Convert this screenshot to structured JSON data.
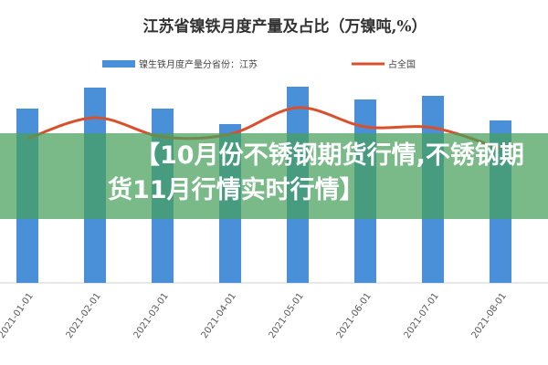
{
  "chart_data": {
    "type": "bar",
    "title": "江苏省镍铁月度产量及占比（万镍吨,%）",
    "categories": [
      "2021-01-01",
      "2021-02-01",
      "2021-03-01",
      "2021-04-01",
      "2021-05-01",
      "2021-06-01",
      "2021-07-01",
      "2021-08-01"
    ],
    "series": [
      {
        "name": "镍生铁月度产量分省份：江苏",
        "color": "#4a90d9",
        "type": "bar",
        "values": [
          1.91,
          2.14,
          1.91,
          1.74,
          2.15,
          2.01,
          2.05,
          1.78
        ]
      },
      {
        "name": "占全国",
        "color": "#d9502c",
        "type": "line",
        "axis": "y2",
        "values": [
          31.6,
          36.2,
          32,
          32.6,
          38.4,
          34.2,
          34,
          29.4
        ]
      }
    ],
    "ylim": [
      0,
      2.5
    ],
    "y2lim": [
      0,
      50
    ],
    "annotations": [
      "【10月份不锈钢期货行情,不锈钢期货11月行情实时行情】"
    ]
  }
}
